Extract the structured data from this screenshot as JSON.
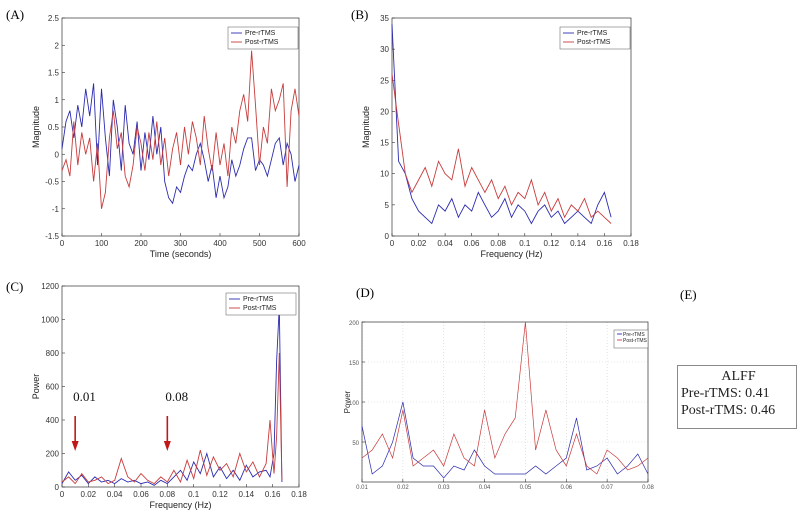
{
  "panel_labels": {
    "a": "(A)",
    "b": "(B)",
    "c": "(C)",
    "d": "(D)",
    "e": "(E)"
  },
  "colors": {
    "pre": "#2b2bb0",
    "post": "#c83c3c",
    "arrow": "#c01818"
  },
  "alff": {
    "title": "ALFF",
    "pre_line": "Pre-rTMS: 0.41",
    "post_line": "Post-rTMS: 0.46"
  },
  "chart_data": [
    {
      "type": "line",
      "panel": "A",
      "xlabel": "Time (seconds)",
      "ylabel": "Magnitude",
      "xlim": [
        0,
        600
      ],
      "ylim": [
        -1.5,
        2.5
      ],
      "xticks": [
        "0",
        "100",
        "200",
        "300",
        "400",
        "500",
        "600"
      ],
      "yticks": [
        "-1.5",
        "-1",
        "-0.5",
        "0",
        "0.5",
        "1",
        "1.5",
        "2",
        "2.5"
      ],
      "legend": {
        "placement": "top-right",
        "entries": [
          "Pre-rTMS",
          "Post-rTMS"
        ]
      },
      "x": [
        0,
        10,
        20,
        30,
        40,
        50,
        60,
        70,
        80,
        90,
        100,
        110,
        120,
        130,
        140,
        150,
        160,
        170,
        180,
        190,
        200,
        210,
        220,
        230,
        240,
        250,
        260,
        270,
        280,
        290,
        300,
        310,
        320,
        330,
        340,
        350,
        360,
        370,
        380,
        390,
        400,
        410,
        420,
        430,
        440,
        450,
        460,
        470,
        480,
        490,
        500,
        510,
        520,
        530,
        540,
        550,
        560,
        570,
        580,
        590,
        600
      ],
      "series": [
        {
          "name": "Pre-rTMS",
          "values": [
            0.1,
            0.6,
            0.8,
            0.3,
            0.9,
            0.5,
            1.2,
            0.7,
            1.3,
            -0.2,
            1.2,
            0.3,
            -0.4,
            1.0,
            0.5,
            -0.3,
            0.9,
            0.2,
            0.0,
            0.6,
            -0.3,
            0.4,
            -0.1,
            0.7,
            0.0,
            0.5,
            -0.5,
            -0.8,
            -0.9,
            -0.6,
            -0.7,
            -0.4,
            -0.2,
            -0.3,
            0.0,
            0.2,
            -0.1,
            -0.5,
            -0.2,
            -0.8,
            -0.4,
            -0.8,
            -0.6,
            -0.1,
            -0.4,
            -0.2,
            0.1,
            0.3,
            0.3,
            -0.3,
            -0.1,
            -0.2,
            -0.4,
            -0.1,
            0.2,
            0.3,
            -0.2,
            0.2,
            0.0,
            -0.5,
            -0.2
          ]
        },
        {
          "name": "Post-rTMS",
          "values": [
            -0.3,
            -0.1,
            -0.4,
            0.6,
            -0.2,
            0.4,
            0.0,
            0.3,
            -0.5,
            0.2,
            -1.0,
            -0.7,
            0.3,
            0.8,
            0.1,
            0.4,
            -0.4,
            -0.6,
            -0.2,
            0.5,
            0.2,
            -0.3,
            0.4,
            -0.1,
            0.6,
            -0.2,
            0.3,
            -0.4,
            0.1,
            0.4,
            -0.2,
            0.5,
            0.0,
            0.6,
            0.3,
            -0.2,
            0.7,
            0.1,
            -0.3,
            0.4,
            -0.2,
            0.2,
            -0.4,
            0.5,
            0.2,
            0.8,
            1.1,
            0.6,
            1.9,
            0.9,
            -0.2,
            0.5,
            0.2,
            1.2,
            0.8,
            1.0,
            1.3,
            -0.6,
            0.8,
            1.2,
            0.7
          ]
        }
      ]
    },
    {
      "type": "line",
      "panel": "B",
      "xlabel": "Frequency (Hz)",
      "ylabel": "Magnitude",
      "xlim": [
        0,
        0.18
      ],
      "ylim": [
        0,
        35
      ],
      "xticks": [
        "0",
        "0.02",
        "0.04",
        "0.06",
        "0.08",
        "0.1",
        "0.12",
        "0.14",
        "0.16",
        "0.18"
      ],
      "yticks": [
        "0",
        "5",
        "10",
        "15",
        "20",
        "25",
        "30",
        "35"
      ],
      "legend": {
        "placement": "top-right",
        "entries": [
          "Pre-rTMS",
          "Post-rTMS"
        ]
      },
      "x": [
        0,
        0.005,
        0.01,
        0.015,
        0.02,
        0.025,
        0.03,
        0.035,
        0.04,
        0.045,
        0.05,
        0.055,
        0.06,
        0.065,
        0.07,
        0.075,
        0.08,
        0.085,
        0.09,
        0.095,
        0.1,
        0.105,
        0.11,
        0.115,
        0.12,
        0.125,
        0.13,
        0.135,
        0.14,
        0.145,
        0.15,
        0.155,
        0.16,
        0.165
      ],
      "series": [
        {
          "name": "Pre-rTMS",
          "values": [
            34,
            12,
            10,
            6,
            4,
            3,
            2,
            5,
            4,
            6,
            3,
            5,
            4,
            7,
            5,
            3,
            4,
            6,
            3,
            5,
            4,
            2,
            4,
            5,
            3,
            4,
            2,
            3,
            4,
            3,
            2,
            5,
            7,
            3
          ]
        },
        {
          "name": "Post-rTMS",
          "values": [
            26,
            18,
            10,
            7,
            9,
            11,
            8,
            12,
            10,
            9,
            14,
            8,
            11,
            9,
            7,
            9,
            6,
            8,
            5,
            7,
            6,
            9,
            5,
            7,
            4,
            6,
            3,
            5,
            4,
            6,
            3,
            4,
            3,
            2
          ]
        }
      ]
    },
    {
      "type": "line",
      "panel": "C",
      "xlabel": "Frequency (Hz)",
      "ylabel": "Power",
      "xlim": [
        0,
        0.18
      ],
      "ylim": [
        0,
        1200
      ],
      "xticks": [
        "0",
        "0.02",
        "0.04",
        "0.06",
        "0.08",
        "0.1",
        "0.12",
        "0.14",
        "0.16",
        "0.18"
      ],
      "yticks": [
        "0",
        "200",
        "400",
        "600",
        "800",
        "1000",
        "1200"
      ],
      "legend": {
        "placement": "top-right",
        "entries": [
          "Pre-rTMS",
          "Post-rTMS"
        ]
      },
      "annotations": [
        {
          "text": "0.01",
          "x": 0.01
        },
        {
          "text": "0.08",
          "x": 0.08
        }
      ],
      "x": [
        0,
        0.005,
        0.01,
        0.015,
        0.02,
        0.025,
        0.03,
        0.035,
        0.04,
        0.045,
        0.05,
        0.055,
        0.06,
        0.065,
        0.07,
        0.075,
        0.08,
        0.085,
        0.09,
        0.095,
        0.1,
        0.105,
        0.11,
        0.115,
        0.12,
        0.125,
        0.13,
        0.135,
        0.14,
        0.145,
        0.15,
        0.155,
        0.158,
        0.161,
        0.163,
        0.165,
        0.167
      ],
      "series": [
        {
          "name": "Pre-rTMS",
          "values": [
            20,
            90,
            40,
            70,
            20,
            60,
            30,
            40,
            20,
            50,
            30,
            40,
            20,
            30,
            10,
            40,
            20,
            60,
            100,
            40,
            150,
            80,
            200,
            60,
            120,
            50,
            100,
            40,
            130,
            60,
            90,
            100,
            60,
            200,
            750,
            1080,
            30
          ]
        },
        {
          "name": "Post-rTMS",
          "values": [
            30,
            60,
            20,
            80,
            30,
            40,
            60,
            20,
            40,
            170,
            60,
            30,
            80,
            40,
            20,
            60,
            30,
            100,
            30,
            160,
            50,
            220,
            70,
            180,
            100,
            140,
            60,
            200,
            90,
            150,
            60,
            140,
            400,
            80,
            300,
            800,
            40
          ]
        }
      ]
    },
    {
      "type": "line",
      "panel": "D",
      "xlabel": "",
      "ylabel": "Power",
      "xlim": [
        0.01,
        0.08
      ],
      "ylim": [
        0,
        200
      ],
      "xticks": [
        "0.01",
        "0.02",
        "0.03",
        "0.04",
        "0.05",
        "0.06",
        "0.07",
        "0.08"
      ],
      "yticks": [
        "50",
        "100",
        "150",
        "200"
      ],
      "legend": {
        "placement": "top-right",
        "entries": [
          "Pre-rTMS",
          "Post-rTMS"
        ]
      },
      "x": [
        0.01,
        0.0125,
        0.015,
        0.0175,
        0.02,
        0.0225,
        0.025,
        0.0275,
        0.03,
        0.0325,
        0.035,
        0.0375,
        0.04,
        0.0425,
        0.045,
        0.0475,
        0.05,
        0.0525,
        0.055,
        0.0575,
        0.06,
        0.0625,
        0.065,
        0.0675,
        0.07,
        0.0725,
        0.075,
        0.0775,
        0.08
      ],
      "series": [
        {
          "name": "Pre-rTMS",
          "values": [
            70,
            10,
            20,
            50,
            100,
            30,
            20,
            20,
            5,
            20,
            15,
            40,
            20,
            10,
            10,
            10,
            10,
            20,
            10,
            20,
            30,
            80,
            15,
            20,
            30,
            10,
            20,
            35,
            10
          ]
        },
        {
          "name": "Post-rTMS",
          "values": [
            30,
            40,
            60,
            30,
            90,
            20,
            30,
            40,
            20,
            60,
            30,
            20,
            90,
            30,
            60,
            80,
            200,
            40,
            90,
            40,
            20,
            60,
            20,
            10,
            40,
            30,
            15,
            20,
            30
          ]
        }
      ]
    }
  ]
}
